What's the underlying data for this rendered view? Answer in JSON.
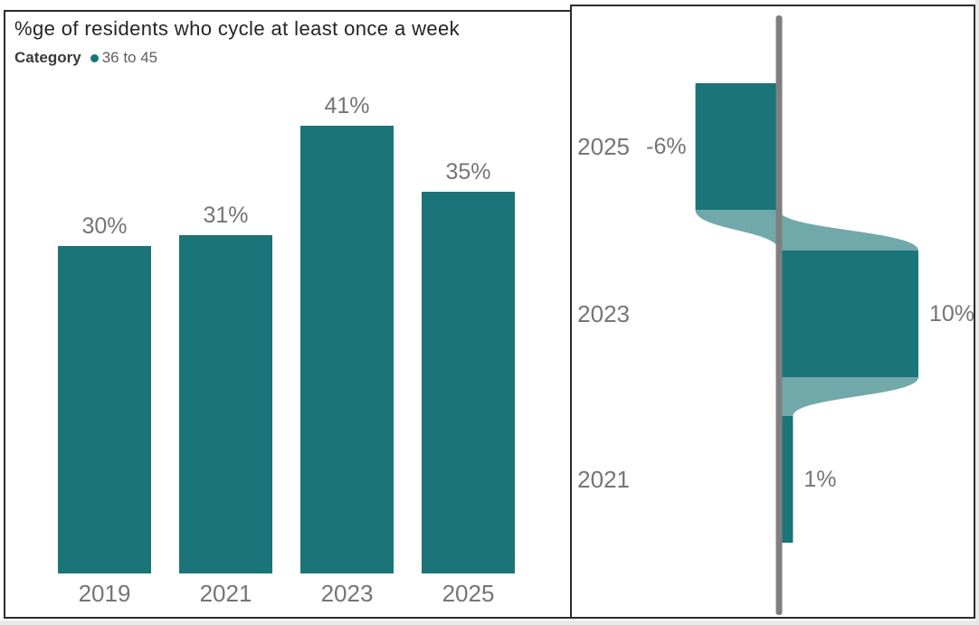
{
  "left_panel": {
    "title": "%ge of residents who cycle at least once a week",
    "legend": {
      "field": "Category",
      "item": "36 to 45"
    }
  },
  "colors": {
    "accent_teal": "#1A7478",
    "connector_teal": "#1A7478",
    "axis_gray": "#7F7F7F",
    "label_gray": "#757575",
    "title_dark": "#252423",
    "legend_text": "#605E5C",
    "border_dark": "#2B2B2B"
  },
  "chart_data": [
    {
      "type": "bar",
      "title": "%ge of residents who cycle at least once a week",
      "legend_field": "Category",
      "series_name": "36 to 45",
      "categories": [
        "2019",
        "2021",
        "2023",
        "2025"
      ],
      "values": [
        30,
        31,
        41,
        35
      ],
      "data_labels": [
        "30%",
        "31%",
        "41%",
        "35%"
      ],
      "unit": "%",
      "ylim": [
        0,
        45
      ],
      "grid": false,
      "legend_position": "top-left"
    },
    {
      "type": "bar",
      "subtype": "deviation-flow",
      "orientation": "horizontal",
      "title": "",
      "categories": [
        "2025",
        "2023",
        "2021"
      ],
      "values": [
        -6,
        10,
        1
      ],
      "data_labels": [
        "-6%",
        "10%",
        "1%"
      ],
      "unit": "%",
      "baseline": 0,
      "xlim": [
        -7,
        11
      ],
      "grid": false,
      "legend_position": "none"
    }
  ]
}
